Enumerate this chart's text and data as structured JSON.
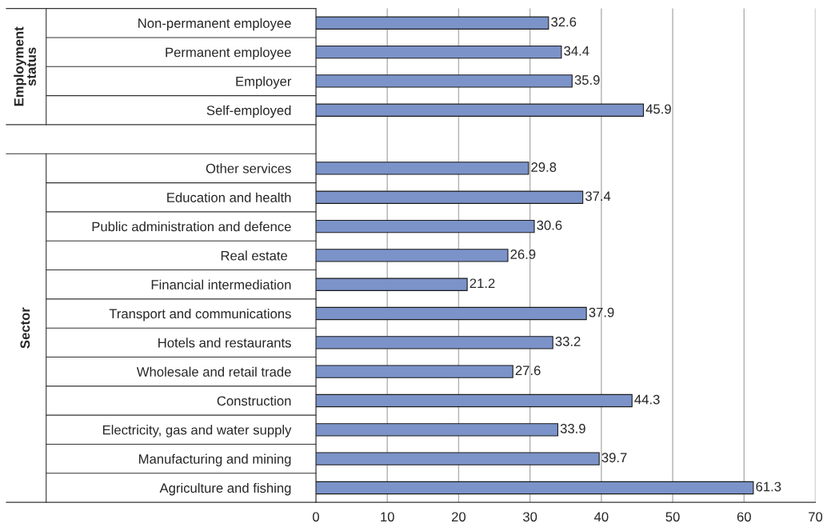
{
  "chart_data": {
    "type": "bar",
    "orientation": "horizontal",
    "categories": [
      "Non-permanent employee",
      "Permanent employee",
      "Employer",
      "Self-employed",
      null,
      "Other services",
      "Education and health",
      "Public administration and defence",
      "Real estate ",
      "Financial intermediation",
      "Transport and communications",
      "Hotels and restaurants",
      "Wholesale and retail trade",
      "Construction",
      "Electricity, gas and water supply",
      "Manufacturing and mining",
      "Agriculture and fishing"
    ],
    "values": [
      32.6,
      34.4,
      35.9,
      45.9,
      null,
      29.8,
      37.4,
      30.6,
      26.9,
      21.2,
      37.9,
      33.2,
      27.6,
      44.3,
      33.9,
      39.7,
      61.3
    ],
    "color": "#7b93c8",
    "xlim": [
      0,
      70
    ],
    "xticks": [
      0,
      10,
      20,
      30,
      40,
      50,
      60,
      70
    ],
    "grid": "x",
    "data_labels": true,
    "annotations": [
      "Employment status",
      "Sector"
    ]
  }
}
